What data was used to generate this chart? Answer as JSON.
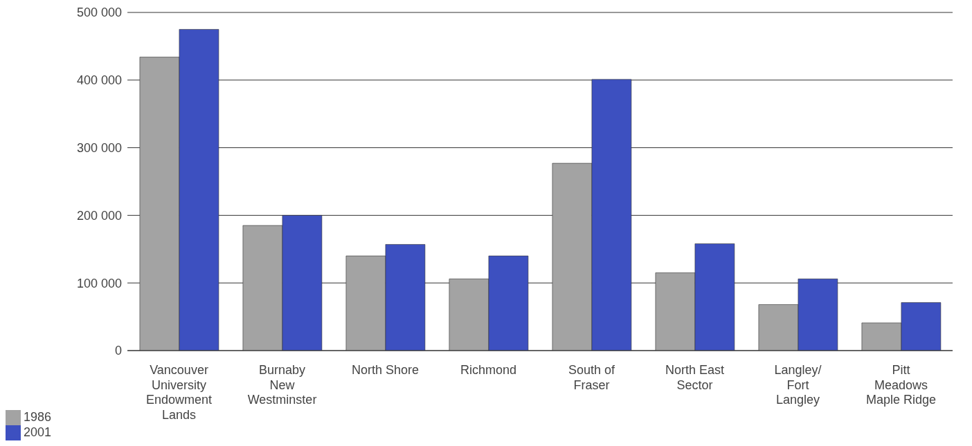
{
  "chart_data": {
    "type": "bar",
    "categories": [
      "Vancouver\nUniversity\nEndowment\nLands",
      "Burnaby\nNew\nWestminster",
      "North Shore",
      "Richmond",
      "South of\nFraser",
      "North East\nSector",
      "Langley/\nFort\nLangley",
      "Pitt\nMeadows\nMaple Ridge"
    ],
    "series": [
      {
        "name": "1986",
        "color": "#a3a3a3",
        "values": [
          434000,
          185000,
          140000,
          106000,
          277000,
          115000,
          68000,
          41000
        ]
      },
      {
        "name": "2001",
        "color": "#3d50c0",
        "values": [
          475000,
          200000,
          157000,
          140000,
          401000,
          158000,
          106000,
          71000
        ]
      }
    ],
    "ylim": [
      0,
      500000
    ],
    "yticks": [
      {
        "value": 0,
        "label": "0"
      },
      {
        "value": 100000,
        "label": "100 000"
      },
      {
        "value": 200000,
        "label": "200 000"
      },
      {
        "value": 300000,
        "label": "300 000"
      },
      {
        "value": 400000,
        "label": "400 000"
      },
      {
        "value": 500000,
        "label": "500 000"
      }
    ],
    "grid": "y",
    "legend": "bottom left"
  }
}
